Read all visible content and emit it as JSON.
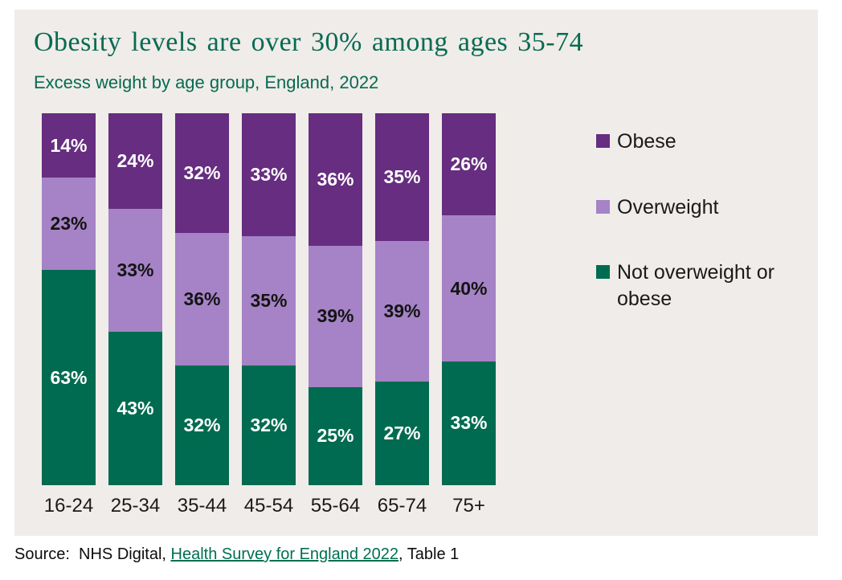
{
  "chart_data": {
    "type": "bar",
    "stacked": true,
    "title": "Obesity levels are over 30% among ages 35-74",
    "subtitle": "Excess weight by age group, England, 2022",
    "xlabel": "",
    "ylabel": "",
    "unit": "%",
    "ylim": [
      0,
      100
    ],
    "grid": false,
    "legend_position": "right",
    "categories": [
      "16-24",
      "25-34",
      "35-44",
      "45-54",
      "55-64",
      "65-74",
      "75+"
    ],
    "series": [
      {
        "name": "Obese",
        "color": "#662D80",
        "label_color": "#FFFFFF",
        "values": [
          14,
          24,
          32,
          33,
          36,
          35,
          26
        ]
      },
      {
        "name": "Overweight",
        "color": "#A583C6",
        "label_color": "#141414",
        "values": [
          23,
          33,
          36,
          35,
          39,
          39,
          40
        ]
      },
      {
        "name": "Not overweight or obese",
        "color": "#006B50",
        "label_color": "#FFFFFF",
        "values": [
          63,
          43,
          32,
          32,
          25,
          27,
          33
        ]
      }
    ]
  },
  "source": {
    "prefix": "Source:  NHS Digital, ",
    "link_text": "Health Survey for England 2022",
    "suffix": ", Table 1"
  },
  "colors": {
    "panel_background": "#EFECE9",
    "title_green": "#086A52",
    "link_green": "#006F51"
  }
}
